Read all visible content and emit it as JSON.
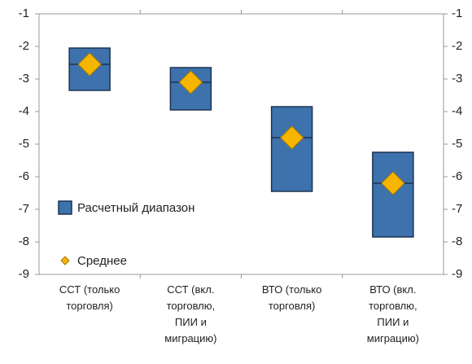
{
  "chart_data": {
    "type": "range",
    "categories": [
      [
        "ССТ (только",
        "торговля)"
      ],
      [
        "ССТ (вкл.",
        "торговлю,",
        "ПИИ и",
        "миграцию)"
      ],
      [
        "ВТО (только",
        "торговля)"
      ],
      [
        "ВТО (вкл.",
        "торговлю,",
        "ПИИ и",
        "миграцию)"
      ]
    ],
    "series": [
      {
        "name": "Расчетный диапазон",
        "color": "#3d72ad",
        "low": [
          -3.35,
          -3.95,
          -6.45,
          -7.85
        ],
        "high": [
          -2.05,
          -2.65,
          -3.85,
          -5.25
        ]
      },
      {
        "name": "Среднее",
        "color": "#f7b500",
        "values": [
          -2.55,
          -3.1,
          -4.8,
          -6.2
        ]
      }
    ],
    "ylim": [
      -9,
      -1
    ],
    "yticks": [
      -1,
      -2,
      -3,
      -4,
      -5,
      -6,
      -7,
      -8,
      -9
    ]
  }
}
